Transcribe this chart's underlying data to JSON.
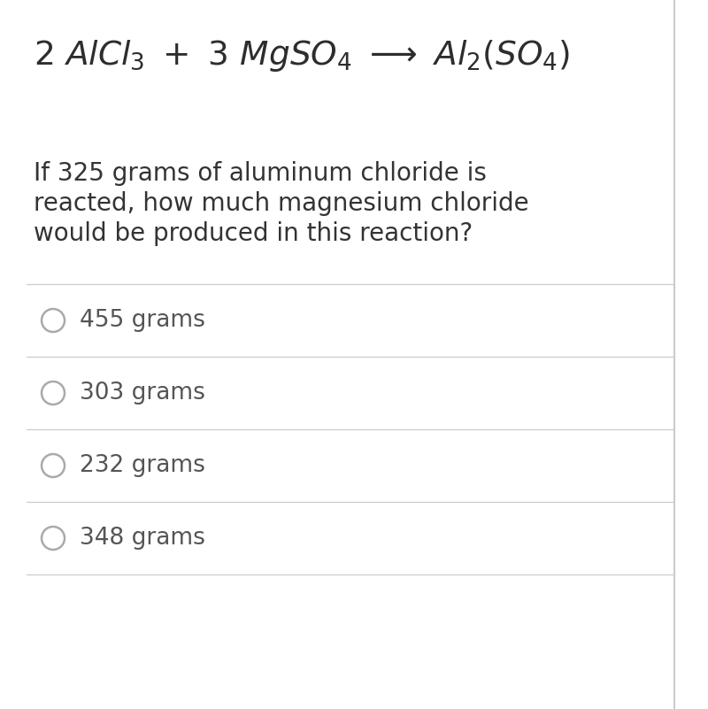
{
  "background_color": "#ffffff",
  "right_border_color": "#cccccc",
  "question_text_lines": [
    "If 325 grams of aluminum chloride is",
    "reacted, how much magnesium chloride",
    "would be produced in this reaction?"
  ],
  "options": [
    "455 grams",
    "303 grams",
    "232 grams",
    "348 grams"
  ],
  "text_color": "#333333",
  "equation_color": "#2d2d2d",
  "option_text_color": "#555555",
  "divider_color": "#cccccc",
  "circle_color": "#aaaaaa",
  "equation_fontsize": 27,
  "question_fontsize": 20,
  "option_fontsize": 19,
  "fig_width": 8.0,
  "fig_height": 8.01
}
